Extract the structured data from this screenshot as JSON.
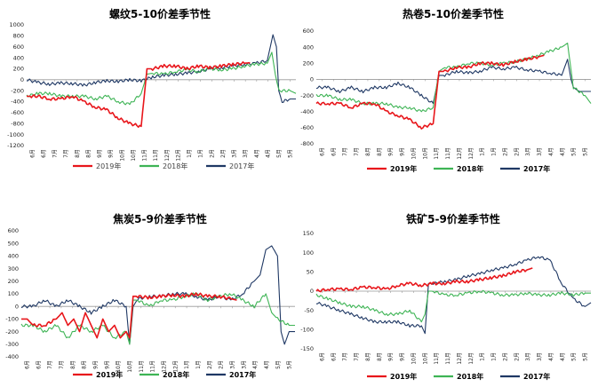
{
  "chart_data": [
    {
      "type": "line",
      "title": "螺纹5-10价差季节性",
      "ylim": [
        -1200,
        1000
      ],
      "yticks": [
        1000,
        800,
        600,
        400,
        200,
        0,
        -200,
        -400,
        -600,
        -800,
        -1000,
        -1200
      ],
      "ytick_labels": [
        "1000",
        "800",
        "600",
        "400",
        "200",
        "0",
        "-200",
        "-400",
        "-600",
        "-800",
        "-1000",
        "-1200"
      ],
      "month_ticks": [
        "6月",
        "6月",
        "7月",
        "7月",
        "8月",
        "8月",
        "9月",
        "9月",
        "10月",
        "10月",
        "11月",
        "11月",
        "12月",
        "12月",
        "1月",
        "1月",
        "2月",
        "2月",
        "3月",
        "3月",
        "4月",
        "4月",
        "5月",
        "5月"
      ],
      "legend_position": "bottom",
      "legend_style": "normal",
      "series": [
        {
          "name": "2019年",
          "color": "#e8161b",
          "x": [
            0,
            0.3,
            1,
            2,
            3,
            4,
            5,
            6,
            7,
            8,
            9,
            10,
            10.5,
            11,
            12,
            13,
            14,
            15,
            16,
            17,
            18,
            19,
            19.5
          ],
          "y": [
            -300,
            -300,
            -300,
            -350,
            -350,
            -300,
            -400,
            -500,
            -550,
            -700,
            -800,
            -850,
            200,
            200,
            250,
            250,
            200,
            250,
            220,
            250,
            280,
            300,
            310
          ]
        },
        {
          "name": "2018年",
          "color": "#3eb455",
          "x": [
            0,
            1,
            2,
            3,
            4,
            5,
            6,
            7,
            8,
            9,
            10,
            10.5,
            11,
            12,
            13,
            14,
            15,
            16,
            17,
            18,
            19,
            20,
            21,
            21.4,
            21.7,
            22,
            23,
            23.5
          ],
          "y": [
            -300,
            -250,
            -250,
            -300,
            -300,
            -300,
            -350,
            -300,
            -400,
            -450,
            -250,
            100,
            120,
            100,
            150,
            180,
            150,
            200,
            180,
            200,
            250,
            280,
            300,
            500,
            100,
            -200,
            -200,
            -250
          ]
        },
        {
          "name": "2017年",
          "color": "#1f3864",
          "x": [
            0,
            1,
            2,
            3,
            4,
            5,
            6,
            7,
            8,
            9,
            10,
            11,
            12,
            13,
            14,
            15,
            16,
            17,
            18,
            19,
            20,
            21,
            21.5,
            21.8,
            22,
            22.3,
            23,
            23.5
          ],
          "y": [
            0,
            -50,
            -80,
            -60,
            -70,
            -100,
            -50,
            -20,
            -30,
            0,
            -20,
            50,
            80,
            100,
            120,
            150,
            200,
            220,
            250,
            280,
            300,
            350,
            820,
            600,
            -200,
            -400,
            -350,
            -350
          ]
        }
      ]
    },
    {
      "type": "line",
      "title": "热卷5-10价差季节性",
      "ylim": [
        -800,
        600
      ],
      "yticks": [
        600,
        400,
        200,
        0,
        -200,
        -400,
        -600,
        -800
      ],
      "ytick_labels": [
        "600",
        "400",
        "200",
        "0",
        "-200",
        "-400",
        "-600",
        "-800"
      ],
      "month_ticks": [
        "6月",
        "6月",
        "7月",
        "7月",
        "8月",
        "8月",
        "9月",
        "9月",
        "10月",
        "10月",
        "11月",
        "11月",
        "12月",
        "12月",
        "1月",
        "1月",
        "2月",
        "2月",
        "3月",
        "3月",
        "4月",
        "4月",
        "5月",
        "5月"
      ],
      "legend_position": "bottom",
      "legend_style": "bold",
      "series": [
        {
          "name": "2019年",
          "color": "#e8161b",
          "x": [
            0,
            1,
            2,
            3,
            4,
            5,
            6,
            7,
            8,
            9,
            10,
            10.5,
            11,
            12,
            13,
            14,
            15,
            16,
            17,
            18,
            19,
            19.5
          ],
          "y": [
            -300,
            -300,
            -300,
            -350,
            -300,
            -300,
            -400,
            -450,
            -500,
            -600,
            -550,
            100,
            100,
            150,
            150,
            200,
            200,
            180,
            220,
            250,
            280,
            300
          ]
        },
        {
          "name": "2018年",
          "color": "#3eb455",
          "x": [
            0,
            1,
            2,
            3,
            4,
            5,
            6,
            7,
            8,
            9,
            10,
            10.5,
            11,
            12,
            13,
            14,
            15,
            16,
            17,
            18,
            19,
            20,
            21,
            21.5,
            22,
            23,
            23.5
          ],
          "y": [
            -200,
            -200,
            -250,
            -250,
            -300,
            -300,
            -300,
            -350,
            -350,
            -400,
            -350,
            100,
            150,
            150,
            200,
            200,
            180,
            200,
            220,
            250,
            300,
            350,
            400,
            450,
            -100,
            -200,
            -300
          ]
        },
        {
          "name": "2017年",
          "color": "#1f3864",
          "x": [
            0,
            1,
            2,
            3,
            4,
            5,
            6,
            7,
            8,
            9,
            10,
            10.5,
            11,
            12,
            13,
            14,
            15,
            16,
            17,
            18,
            19,
            20,
            21,
            21.5,
            21.8,
            22,
            22.5,
            23,
            23.5
          ],
          "y": [
            -100,
            -100,
            -150,
            -100,
            -150,
            -100,
            -100,
            -50,
            -100,
            -200,
            -300,
            50,
            50,
            100,
            80,
            100,
            150,
            130,
            150,
            120,
            100,
            80,
            50,
            250,
            0,
            -100,
            -150,
            -150,
            -150
          ]
        }
      ]
    },
    {
      "type": "line",
      "title": "焦炭5-9价差季节性",
      "ylim": [
        -400,
        600
      ],
      "yticks": [
        600,
        500,
        400,
        300,
        200,
        100,
        0,
        -100,
        -200,
        -300,
        -400
      ],
      "ytick_labels": [
        "600",
        "500",
        "400",
        "300",
        "200",
        "100",
        "0",
        "-100",
        "-200",
        "-300",
        "-400"
      ],
      "month_ticks": [
        "6月",
        "6月",
        "7月",
        "7月",
        "8月",
        "8月",
        "9月",
        "9月",
        "10月",
        "10月",
        "11月",
        "11月",
        "12月",
        "12月",
        "1月",
        "1月",
        "2月",
        "2月",
        "3月",
        "3月",
        "4月",
        "4月",
        "5月",
        "5月"
      ],
      "legend_position": "bottom",
      "legend_style": "bold",
      "series": [
        {
          "name": "2019年",
          "color": "#e8161b",
          "x": [
            0,
            0.5,
            1,
            2,
            3,
            3.5,
            4,
            4.5,
            5,
            5.5,
            6,
            6.5,
            7,
            7.5,
            8,
            8.5,
            9,
            9.3,
            9.6,
            10,
            11,
            12,
            13,
            14,
            15,
            16,
            17,
            18,
            18.5
          ],
          "y": [
            -100,
            -100,
            -150,
            -150,
            -100,
            -50,
            -150,
            -100,
            -200,
            -50,
            -150,
            -250,
            -100,
            -200,
            -150,
            -250,
            -200,
            -250,
            80,
            80,
            70,
            80,
            90,
            80,
            100,
            80,
            80,
            60,
            50
          ]
        },
        {
          "name": "2018年",
          "color": "#3eb455",
          "x": [
            0,
            1,
            2,
            3,
            4,
            5,
            6,
            7,
            8,
            9,
            9.3,
            9.6,
            10,
            11,
            12,
            13,
            14,
            15,
            16,
            17,
            18,
            19,
            20,
            21,
            21.5,
            22,
            23,
            23.5
          ],
          "y": [
            -150,
            -150,
            -200,
            -150,
            -250,
            -150,
            -200,
            -150,
            -250,
            -200,
            -300,
            50,
            50,
            0,
            50,
            50,
            80,
            100,
            50,
            80,
            100,
            50,
            0,
            100,
            -50,
            -100,
            -150,
            -150
          ]
        },
        {
          "name": "2017年",
          "color": "#1f3864",
          "x": [
            0,
            1,
            2,
            3,
            4,
            5,
            6,
            7,
            8,
            9,
            9.3,
            9.6,
            10,
            11,
            12,
            13,
            14,
            15,
            16,
            17,
            18,
            19,
            20,
            20.5,
            21,
            21.5,
            22,
            22.3,
            22.6,
            23,
            23.5
          ],
          "y": [
            0,
            0,
            50,
            0,
            50,
            0,
            -50,
            0,
            50,
            0,
            -300,
            0,
            60,
            80,
            80,
            100,
            100,
            80,
            50,
            80,
            50,
            100,
            200,
            250,
            450,
            480,
            400,
            -200,
            -300,
            -200,
            -200
          ]
        }
      ]
    },
    {
      "type": "line",
      "title": "铁矿5-9价差季节性",
      "ylim": [
        -150,
        150
      ],
      "yticks": [
        150,
        100,
        50,
        0,
        -50,
        -100,
        -150
      ],
      "ytick_labels": [
        "150",
        "100",
        "50",
        "0",
        "-50",
        "-100",
        "-150"
      ],
      "month_ticks": [
        "6月",
        "6月",
        "7月",
        "7月",
        "8月",
        "8月",
        "9月",
        "9月",
        "10月",
        "10月",
        "11月",
        "11月",
        "12月",
        "12月",
        "1月",
        "1月",
        "2月",
        "2月",
        "3月",
        "3月",
        "4月",
        "4月",
        "5月",
        "5月"
      ],
      "legend_position": "bottom",
      "legend_style": "bold",
      "series": [
        {
          "name": "2019年",
          "color": "#e8161b",
          "x": [
            0,
            1,
            2,
            3,
            4,
            5,
            6,
            7,
            8,
            9,
            10,
            11,
            12,
            13,
            14,
            15,
            16,
            17,
            18,
            18.5
          ],
          "y": [
            0,
            5,
            5,
            5,
            10,
            10,
            5,
            15,
            20,
            15,
            20,
            20,
            25,
            25,
            30,
            35,
            40,
            50,
            55,
            60
          ]
        },
        {
          "name": "2018年",
          "color": "#3eb455",
          "x": [
            0,
            1,
            2,
            3,
            4,
            5,
            6,
            7,
            8,
            9,
            9.3,
            9.6,
            10,
            11,
            12,
            13,
            14,
            15,
            16,
            17,
            18,
            19,
            20,
            21,
            22,
            23,
            23.5
          ],
          "y": [
            -10,
            -20,
            -30,
            -40,
            -40,
            -50,
            -60,
            -60,
            -50,
            -80,
            -60,
            0,
            0,
            -10,
            -10,
            -5,
            0,
            -5,
            -10,
            -10,
            -5,
            -10,
            -10,
            -5,
            -10,
            -5,
            -5
          ]
        },
        {
          "name": "2017年",
          "color": "#1f3864",
          "x": [
            0,
            1,
            2,
            3,
            4,
            5,
            6,
            7,
            8,
            9,
            9.3,
            9.6,
            10,
            11,
            12,
            13,
            14,
            15,
            16,
            17,
            18,
            19,
            20,
            21,
            22,
            23,
            23.5
          ],
          "y": [
            -30,
            -40,
            -50,
            -60,
            -70,
            -80,
            -80,
            -80,
            -90,
            -90,
            -110,
            20,
            20,
            25,
            30,
            40,
            45,
            55,
            60,
            70,
            80,
            90,
            80,
            20,
            -20,
            -40,
            -30
          ]
        }
      ]
    }
  ]
}
